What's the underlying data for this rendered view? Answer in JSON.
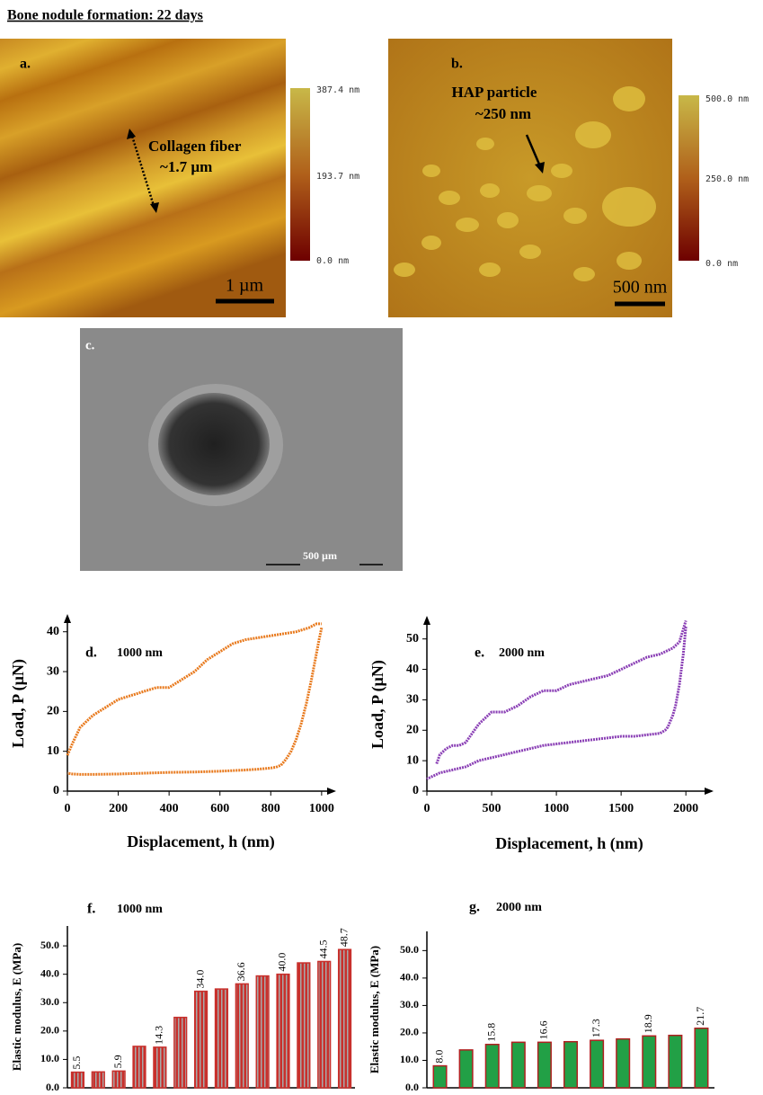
{
  "title": "Bone nodule formation: 22 days",
  "panels": {
    "a": {
      "label": "a.",
      "annotation": [
        "Collagen fiber",
        "~1.7 µm"
      ],
      "scale": "1 µm",
      "colorbar": [
        "387.4 nm",
        "193.7 nm",
        "0.0 nm"
      ]
    },
    "b": {
      "label": "b.",
      "annotation": [
        "HAP particle",
        "~250 nm"
      ],
      "scale": "500 nm",
      "colorbar": [
        "500.0 nm",
        "250.0 nm",
        "0.0 nm"
      ]
    },
    "c": {
      "label": "c.",
      "scale": "500 µm"
    }
  },
  "chart_data": [
    {
      "type": "line",
      "panel_label": "d.",
      "annotation": "1000 nm",
      "x_label": "Displacement, h (nm)",
      "y_label": "Load, P (µN)",
      "xlim": [
        0,
        1050
      ],
      "xticks": [
        0,
        200,
        400,
        600,
        800,
        1000
      ],
      "ylim": [
        0,
        44
      ],
      "yticks": [
        0,
        10,
        20,
        30,
        40
      ],
      "series": [
        {
          "color": "#e87a1e",
          "x": [
            0,
            20,
            50,
            100,
            150,
            200,
            250,
            300,
            350,
            400,
            450,
            500,
            550,
            600,
            650,
            700,
            750,
            800,
            850,
            900,
            950,
            980,
            1000
          ],
          "values": [
            9,
            12,
            16,
            19,
            21,
            23,
            24,
            25,
            26,
            26,
            28,
            30,
            33,
            35,
            37,
            38,
            38.5,
            39,
            39.5,
            40,
            41,
            42,
            42
          ]
        },
        {
          "color": "#e87a1e",
          "x": [
            1000,
            990,
            975,
            960,
            940,
            920,
            900,
            880,
            860,
            840,
            820,
            800,
            750,
            700,
            600,
            500,
            400,
            300,
            200,
            100,
            50,
            20,
            0
          ],
          "values": [
            41,
            38,
            33,
            28,
            22,
            17,
            13,
            10,
            8,
            6.5,
            6,
            5.8,
            5.5,
            5.3,
            5,
            4.8,
            4.7,
            4.5,
            4.3,
            4.2,
            4.2,
            4.3,
            4.5
          ]
        }
      ]
    },
    {
      "type": "line",
      "panel_label": "e.",
      "annotation": "2000 nm",
      "x_label": "Displacement, h (nm)",
      "y_label": "Load, P (µN)",
      "xlim": [
        0,
        2200
      ],
      "xticks": [
        0,
        500,
        1000,
        1500,
        2000
      ],
      "ylim": [
        0,
        57
      ],
      "yticks": [
        0,
        10,
        20,
        30,
        40,
        50
      ],
      "series": [
        {
          "color": "#8a3fb5",
          "x": [
            75,
            100,
            150,
            200,
            250,
            300,
            350,
            400,
            450,
            500,
            550,
            600,
            700,
            800,
            900,
            1000,
            1100,
            1200,
            1300,
            1400,
            1500,
            1600,
            1700,
            1800,
            1900,
            1950,
            2000
          ],
          "values": [
            9,
            12,
            14,
            15,
            15,
            16,
            19,
            22,
            24,
            26,
            26,
            26,
            28,
            31,
            33,
            33,
            35,
            36,
            37,
            38,
            40,
            42,
            44,
            45,
            47,
            49,
            56
          ]
        },
        {
          "color": "#8a3fb5",
          "x": [
            2000,
            1980,
            1950,
            1920,
            1900,
            1880,
            1860,
            1840,
            1800,
            1700,
            1600,
            1500,
            1400,
            1300,
            1200,
            1100,
            1000,
            900,
            800,
            700,
            600,
            500,
            400,
            300,
            200,
            100,
            50,
            0
          ],
          "values": [
            54,
            45,
            35,
            28,
            25,
            23,
            21,
            20,
            19,
            18.5,
            18,
            18,
            17.5,
            17,
            16.5,
            16,
            15.5,
            15,
            14,
            13,
            12,
            11,
            10,
            8,
            7,
            6,
            5,
            4
          ]
        }
      ]
    },
    {
      "type": "bar",
      "panel_label": "f.",
      "annotation": "1000 nm",
      "y_label": "Elastic modulus, E (MPa)",
      "ylim": [
        0,
        57
      ],
      "yticks": [
        {
          "value": 0,
          "label": "0.0"
        },
        {
          "value": 10,
          "label": "10.0"
        },
        {
          "value": 20,
          "label": "20.0"
        },
        {
          "value": 30,
          "label": "30.0"
        },
        {
          "value": 40,
          "label": "40.0"
        },
        {
          "value": 50,
          "label": "50.0"
        }
      ],
      "categories": [
        null,
        null,
        null,
        null,
        null,
        null,
        null,
        null,
        null,
        null,
        null,
        null,
        null,
        null
      ],
      "values": [
        5.5,
        5.6,
        5.9,
        14.6,
        14.3,
        24.8,
        34.0,
        34.8,
        36.6,
        39.4,
        40.0,
        44.0,
        44.5,
        48.7
      ],
      "value_labels": [
        "5.5",
        null,
        "5.9",
        null,
        "14.3",
        null,
        "34.0",
        null,
        "36.6",
        null,
        "40.0",
        null,
        "44.5",
        "48.7"
      ],
      "color": "#c8302c",
      "stripe_color": "#a8a8a8",
      "edge_color": "#c8302c"
    },
    {
      "type": "bar",
      "panel_label": "g.",
      "annotation": "2000 nm",
      "y_label": "Elastic modulus, E (MPa)",
      "ylim": [
        0,
        57
      ],
      "yticks": [
        {
          "value": 0,
          "label": "0.0"
        },
        {
          "value": 10,
          "label": "10.0"
        },
        {
          "value": 20,
          "label": "20.0"
        },
        {
          "value": 30,
          "label": "30.0"
        },
        {
          "value": 40,
          "label": "40.0"
        },
        {
          "value": 50,
          "label": "50.0"
        }
      ],
      "categories": [
        null,
        null,
        null,
        null,
        null,
        null,
        null,
        null,
        null,
        null,
        null
      ],
      "values": [
        8.0,
        13.8,
        15.8,
        16.6,
        16.6,
        16.8,
        17.3,
        17.8,
        18.9,
        19.1,
        21.7
      ],
      "value_labels": [
        "8.0",
        null,
        "15.8",
        null,
        "16.6",
        null,
        "17.3",
        null,
        "18.9",
        null,
        "21.7"
      ],
      "color": "#22a046",
      "edge_color": "#b02020"
    }
  ]
}
